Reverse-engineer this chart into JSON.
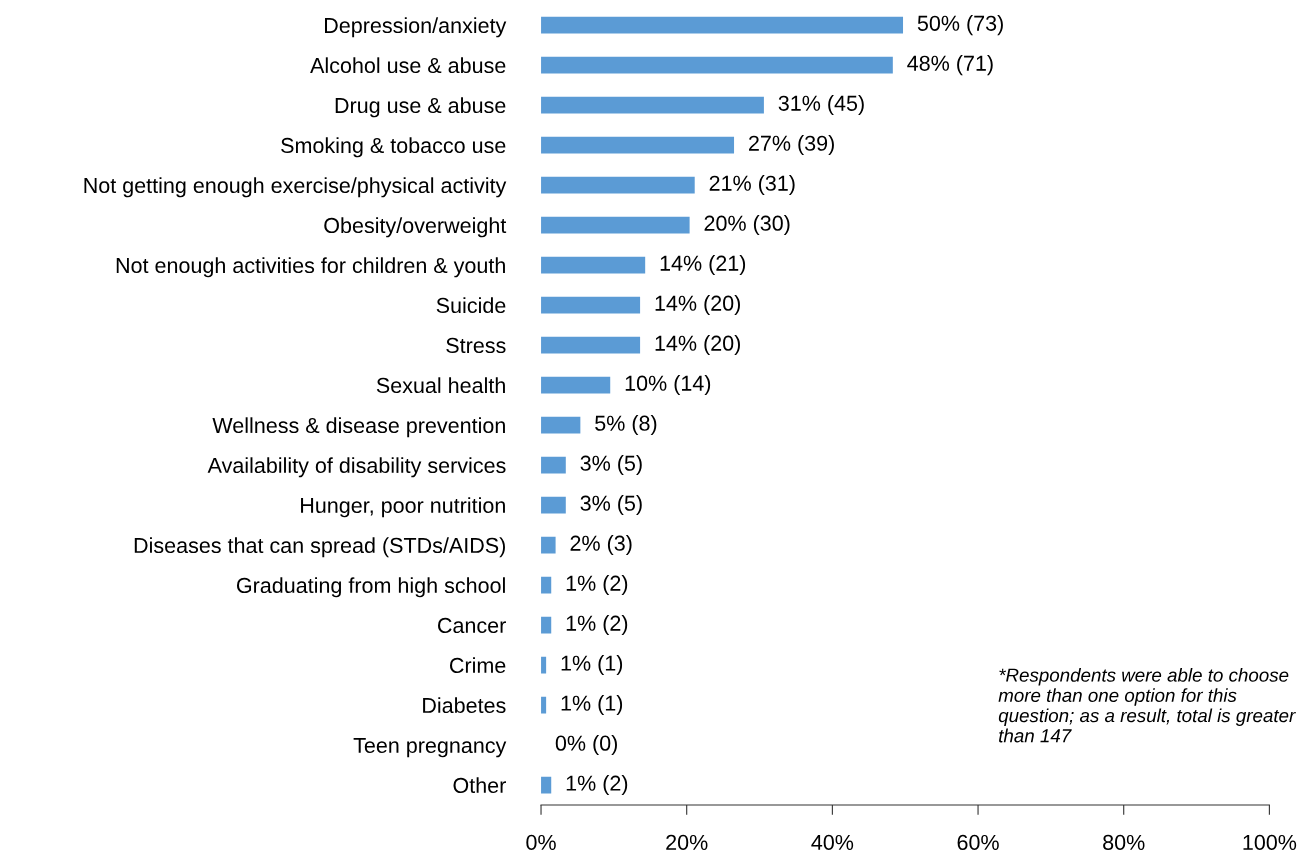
{
  "chart_data": {
    "type": "bar",
    "orientation": "horizontal",
    "categories": [
      "Depression/anxiety",
      "Alcohol use & abuse",
      "Drug use & abuse",
      "Smoking & tobacco use",
      "Not getting enough exercise/physical activity",
      "Obesity/overweight",
      "Not enough activities for children & youth",
      "Suicide",
      "Stress",
      "Sexual health",
      "Wellness & disease prevention",
      "Availability of disability services",
      "Hunger, poor nutrition",
      "Diseases that can spread (STDs/AIDS)",
      "Graduating from high school",
      "Cancer",
      "Crime",
      "Diabetes",
      "Teen pregnancy",
      "Other"
    ],
    "values": [
      49.7,
      48.3,
      30.6,
      26.5,
      21.1,
      20.4,
      14.3,
      13.6,
      13.6,
      9.5,
      5.4,
      3.4,
      3.4,
      2.0,
      1.4,
      1.4,
      0.7,
      0.7,
      0,
      1.4
    ],
    "value_labels": [
      "50% (73)",
      "48% (71)",
      "31% (45)",
      "27% (39)",
      "21% (31)",
      "20% (30)",
      "14% (21)",
      "14% (20)",
      "14% (20)",
      "10% (14)",
      "5% (8)",
      "3% (5)",
      "3% (5)",
      "2% (3)",
      "1% (2)",
      "1% (2)",
      "1% (1)",
      "1% (1)",
      "0% (0)",
      "1% (2)"
    ],
    "color": "#5b9bd5",
    "xlim": [
      0,
      100
    ],
    "xticks": [
      {
        "value": 0,
        "label": "0%"
      },
      {
        "value": 20,
        "label": "20%"
      },
      {
        "value": 40,
        "label": "40%"
      },
      {
        "value": 60,
        "label": "60%"
      },
      {
        "value": 80,
        "label": "80%"
      },
      {
        "value": 100,
        "label": "100%"
      }
    ],
    "grid": false,
    "annotations": [
      "*Respondents were able to choose more than one option for this question; as a result, total is greater than 147"
    ]
  }
}
